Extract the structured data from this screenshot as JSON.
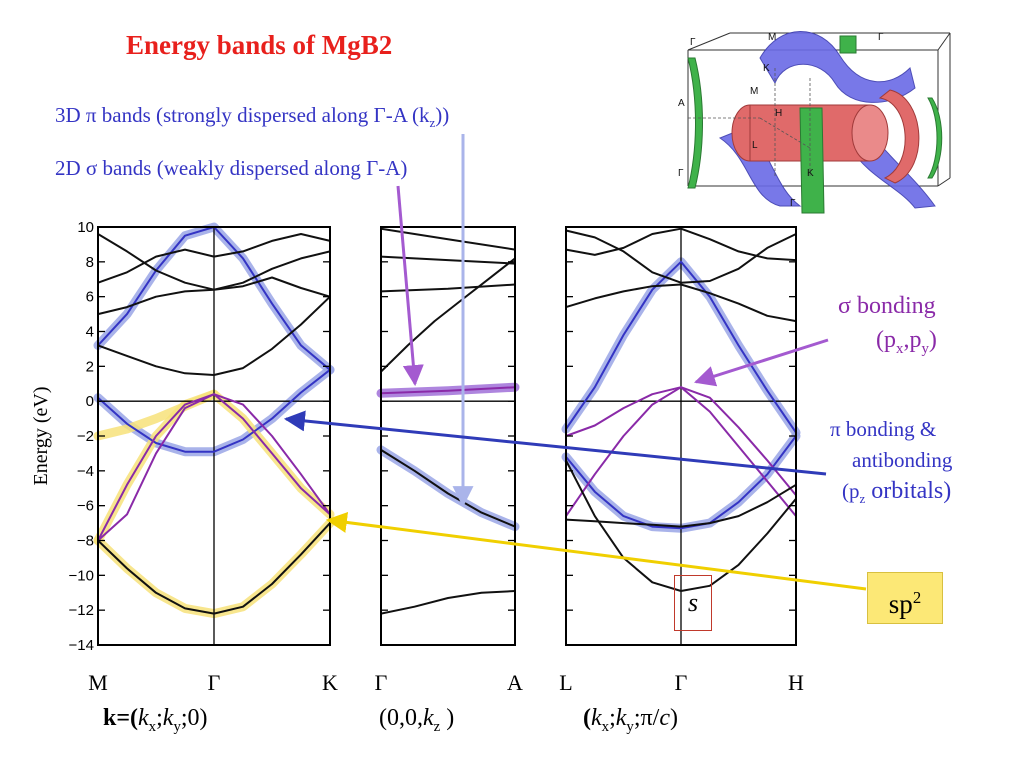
{
  "title": "Energy bands of MgB2",
  "subtitle_pi": "3D π bands (strongly dispersed along Γ-A (kz))",
  "subtitle_pi_parts": [
    "3D π bands (strongly dispersed along Γ-A (k",
    "z",
    "))"
  ],
  "subtitle_sigma": "2D σ bands (weakly dispersed along Γ-A)",
  "annotations": {
    "sigma_bonding_line1": "σ bonding",
    "sigma_bonding_line2_parts": [
      "(p",
      "x",
      ",p",
      "y",
      ")"
    ],
    "pi_bonding_line1": "π bonding &",
    "pi_bonding_line2": "antibonding",
    "pi_bonding_line3_parts": [
      "(p",
      "z",
      " orbitals)"
    ],
    "sp2_parts": [
      "sp",
      "2"
    ],
    "s_label": "s"
  },
  "k_labels": {
    "panel1": [
      "k=(",
      "k",
      "x",
      ";",
      "k",
      "y",
      ";0)"
    ],
    "panel2": [
      "(0,0,",
      "k",
      "z",
      " )"
    ],
    "panel3": [
      "(",
      "k",
      "x",
      ";",
      "k",
      "y",
      ";π/",
      "c",
      ")"
    ]
  },
  "colors": {
    "title": "#e8201c",
    "pi_band": "#3434c4",
    "sigma_band": "#8a2aa8",
    "black_band": "#111111",
    "pi_highlight": "#9aa6e6",
    "sp2_highlight": "#f7e27a",
    "sigma_highlight": "#a070d8",
    "fermi_surface_pi": "#6a6ae6",
    "fermi_surface_sigma": "#e06a6a",
    "fermi_surface_green": "#3fb24a"
  },
  "chart_data": {
    "type": "line",
    "ylabel": "Energy (eV)",
    "ylim": [
      -14,
      10
    ],
    "yticks": [
      10,
      8,
      6,
      4,
      2,
      0,
      -2,
      -4,
      -6,
      -8,
      -10,
      -12,
      -14
    ],
    "panels": [
      {
        "path_labels": [
          "M",
          "Γ",
          "K"
        ],
        "x_ticks": [
          0,
          1,
          2
        ],
        "series": [
          {
            "color": "blue",
            "x": [
              0,
              0.25,
              0.5,
              0.75,
              1,
              1.25,
              1.5,
              1.75,
              2
            ],
            "y": [
              0.2,
              -1.3,
              -2.4,
              -2.9,
              -2.9,
              -2.2,
              -1.0,
              0.5,
              1.8
            ]
          },
          {
            "color": "blue",
            "x": [
              0,
              0.25,
              0.5,
              0.75,
              1,
              1.25,
              1.5,
              1.75,
              2
            ],
            "y": [
              3.2,
              5.0,
              7.5,
              9.5,
              10.0,
              8.2,
              5.6,
              3.2,
              1.8
            ]
          },
          {
            "color": "purple",
            "x": [
              0,
              0.25,
              0.5,
              0.75,
              1,
              1.25,
              1.5,
              1.75,
              2
            ],
            "y": [
              -8.0,
              -4.8,
              -2.0,
              -0.2,
              0.4,
              -1.0,
              -3.0,
              -5.0,
              -6.5
            ]
          },
          {
            "color": "purple",
            "x": [
              0,
              0.25,
              0.5,
              0.75,
              1,
              1.25,
              1.5,
              1.75,
              2
            ],
            "y": [
              -8.0,
              -6.5,
              -3.0,
              -0.4,
              0.4,
              -0.2,
              -2.0,
              -4.2,
              -6.5
            ]
          },
          {
            "color": "black",
            "x": [
              0,
              0.25,
              0.5,
              0.75,
              1,
              1.25,
              1.5,
              1.75,
              2
            ],
            "y": [
              -8.0,
              -9.6,
              -11.0,
              -11.9,
              -12.2,
              -11.8,
              -10.5,
              -8.8,
              -7.0
            ]
          },
          {
            "color": "black",
            "x": [
              0,
              0.25,
              0.5,
              0.75,
              1,
              1.25,
              1.5,
              1.75,
              2
            ],
            "y": [
              3.2,
              2.6,
              2.0,
              1.6,
              1.5,
              1.9,
              3.0,
              4.4,
              6.0
            ]
          },
          {
            "color": "black",
            "x": [
              0,
              0.25,
              0.5,
              0.75,
              1,
              1.25,
              1.5,
              1.75,
              2
            ],
            "y": [
              6.8,
              7.4,
              8.3,
              8.7,
              8.3,
              8.6,
              9.2,
              9.6,
              9.2
            ]
          },
          {
            "color": "black",
            "x": [
              0,
              0.25,
              0.5,
              0.75,
              1,
              1.25,
              1.5,
              1.75,
              2
            ],
            "y": [
              5.0,
              5.4,
              6.0,
              6.3,
              6.4,
              6.8,
              7.6,
              8.2,
              8.6
            ]
          },
          {
            "color": "black",
            "x": [
              0,
              0.25,
              0.5,
              0.75,
              1,
              1.25,
              1.5,
              1.75,
              2
            ],
            "y": [
              9.6,
              8.6,
              7.5,
              6.8,
              6.4,
              6.6,
              7.1,
              6.5,
              6.0
            ]
          }
        ],
        "highlights": [
          {
            "kind": "pi",
            "x": [
              0,
              0.25,
              0.5,
              0.75,
              1,
              1.25,
              1.5,
              1.75,
              2
            ],
            "y": [
              0.2,
              -1.3,
              -2.4,
              -2.9,
              -2.9,
              -2.2,
              -1.0,
              0.5,
              1.8
            ]
          },
          {
            "kind": "pi",
            "x": [
              0,
              0.25,
              0.5,
              0.75,
              1,
              1.25,
              1.5,
              1.75,
              2
            ],
            "y": [
              3.2,
              5.0,
              7.5,
              9.5,
              10.0,
              8.2,
              5.6,
              3.2,
              1.8
            ]
          },
          {
            "kind": "sp2",
            "x": [
              0,
              0.25,
              0.5,
              0.75,
              1,
              1.25,
              1.5,
              1.75,
              2
            ],
            "y": [
              -8.0,
              -9.6,
              -11.0,
              -11.9,
              -12.2,
              -11.8,
              -10.5,
              -8.8,
              -7.0
            ]
          },
          {
            "kind": "sp2",
            "x": [
              0,
              0.25,
              0.5,
              0.75,
              1,
              1.25,
              1.5,
              1.75,
              2
            ],
            "y": [
              -8.0,
              -4.8,
              -2.0,
              -0.2,
              0.4,
              -1.0,
              -3.0,
              -5.0,
              -6.5
            ]
          },
          {
            "kind": "sp2",
            "x": [
              0,
              0.25,
              0.5,
              0.75,
              1
            ],
            "y": [
              -2.0,
              -1.6,
              -1.0,
              -0.3,
              0.4
            ]
          }
        ]
      },
      {
        "path_labels": [
          "Γ",
          "A"
        ],
        "x_ticks": [
          0,
          1
        ],
        "series": [
          {
            "color": "black",
            "x": [
              0,
              0.25,
              0.5,
              0.75,
              1
            ],
            "y": [
              -12.2,
              -11.8,
              -11.3,
              -11.0,
              -10.9
            ]
          },
          {
            "color": "black",
            "x": [
              0,
              0.25,
              0.5,
              0.75,
              1
            ],
            "y": [
              -2.8,
              -4.0,
              -5.3,
              -6.4,
              -7.2
            ]
          },
          {
            "color": "purple",
            "x": [
              0,
              0.5,
              1
            ],
            "y": [
              0.45,
              0.6,
              0.8
            ]
          },
          {
            "color": "black",
            "x": [
              0,
              0.2,
              0.4,
              0.6,
              0.8,
              1
            ],
            "y": [
              1.7,
              3.2,
              4.6,
              5.8,
              7.0,
              8.2
            ]
          },
          {
            "color": "black",
            "x": [
              0,
              0.5,
              1
            ],
            "y": [
              6.3,
              6.45,
              6.7
            ]
          },
          {
            "color": "black",
            "x": [
              0,
              0.5,
              1
            ],
            "y": [
              8.3,
              8.1,
              7.9
            ]
          },
          {
            "color": "black",
            "x": [
              0,
              0.5,
              1
            ],
            "y": [
              9.9,
              9.3,
              8.7
            ]
          }
        ],
        "highlights": [
          {
            "kind": "pi",
            "x": [
              0,
              0.25,
              0.5,
              0.75,
              1
            ],
            "y": [
              -2.8,
              -4.0,
              -5.3,
              -6.4,
              -7.2
            ]
          },
          {
            "kind": "sigma",
            "x": [
              0,
              0.5,
              1
            ],
            "y": [
              0.45,
              0.6,
              0.8
            ]
          }
        ]
      },
      {
        "path_labels": [
          "L",
          "Γ",
          "H"
        ],
        "x_ticks": [
          0,
          1,
          2
        ],
        "series": [
          {
            "color": "blue",
            "x": [
              0,
              0.25,
              0.5,
              0.75,
              1,
              1.25,
              1.5,
              1.75,
              2
            ],
            "y": [
              -1.6,
              0.8,
              3.8,
              6.4,
              8.0,
              6.0,
              3.2,
              0.6,
              -1.8
            ]
          },
          {
            "color": "blue",
            "x": [
              0,
              0.25,
              0.5,
              0.75,
              1,
              1.25,
              1.5,
              1.75,
              2
            ],
            "y": [
              -3.2,
              -5.2,
              -6.6,
              -7.2,
              -7.3,
              -7.0,
              -5.8,
              -4.2,
              -2.0
            ]
          },
          {
            "color": "purple",
            "x": [
              0,
              0.25,
              0.5,
              0.75,
              1,
              1.25,
              1.5,
              1.75,
              2
            ],
            "y": [
              -2.0,
              -1.4,
              -0.4,
              0.4,
              0.8,
              0.2,
              -1.5,
              -3.4,
              -5.4
            ]
          },
          {
            "color": "purple",
            "x": [
              0,
              0.25,
              0.5,
              0.75,
              1,
              1.25,
              1.5,
              1.75,
              2
            ],
            "y": [
              -6.6,
              -4.2,
              -2.0,
              -0.2,
              0.8,
              -0.6,
              -2.6,
              -4.6,
              -6.6
            ]
          },
          {
            "color": "black",
            "x": [
              0,
              0.25,
              0.5,
              0.75,
              1,
              1.25,
              1.5,
              1.75,
              2
            ],
            "y": [
              -3.4,
              -6.6,
              -9.0,
              -10.4,
              -10.9,
              -10.6,
              -9.4,
              -7.6,
              -5.6
            ]
          },
          {
            "color": "black",
            "x": [
              0,
              0.25,
              0.5,
              0.75,
              1,
              1.25,
              1.5,
              1.75,
              2
            ],
            "y": [
              -6.8,
              -6.9,
              -7.0,
              -7.1,
              -7.2,
              -7.0,
              -6.6,
              -5.8,
              -4.8
            ]
          },
          {
            "color": "black",
            "x": [
              0,
              0.25,
              0.5,
              0.75,
              1,
              1.25,
              1.5,
              1.75,
              2
            ],
            "y": [
              5.4,
              5.9,
              6.3,
              6.6,
              6.7,
              6.2,
              5.6,
              4.9,
              4.6
            ]
          },
          {
            "color": "black",
            "x": [
              0,
              0.25,
              0.5,
              0.75,
              1,
              1.25,
              1.5,
              1.75,
              2
            ],
            "y": [
              8.7,
              8.4,
              8.8,
              9.6,
              9.9,
              9.3,
              8.6,
              8.2,
              8.1
            ]
          },
          {
            "color": "black",
            "x": [
              0,
              0.25,
              0.5,
              0.75,
              1,
              1.25,
              1.5,
              1.75,
              2
            ],
            "y": [
              9.8,
              9.4,
              8.6,
              7.4,
              6.8,
              6.9,
              7.6,
              8.8,
              9.6
            ]
          }
        ],
        "highlights": [
          {
            "kind": "pi",
            "x": [
              0,
              0.25,
              0.5,
              0.75,
              1,
              1.25,
              1.5,
              1.75,
              2
            ],
            "y": [
              -1.6,
              0.8,
              3.8,
              6.4,
              8.0,
              6.0,
              3.2,
              0.6,
              -1.8
            ]
          },
          {
            "kind": "pi",
            "x": [
              0,
              0.25,
              0.5,
              0.75,
              1,
              1.25,
              1.5,
              1.75,
              2
            ],
            "y": [
              -3.2,
              -5.2,
              -6.6,
              -7.2,
              -7.3,
              -7.0,
              -5.8,
              -4.2,
              -2.0
            ]
          }
        ]
      }
    ]
  },
  "fermi_surface_labels": [
    "M",
    "Γ",
    "Γ",
    "A",
    "M",
    "K",
    "H",
    "L",
    "Γ",
    "K",
    "Γ"
  ]
}
